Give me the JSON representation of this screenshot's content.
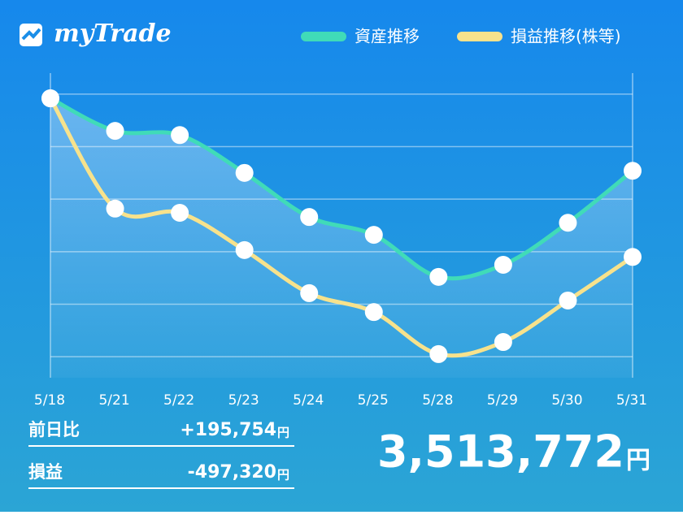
{
  "app_name": "myTrade",
  "chart_data": {
    "type": "line",
    "categories": [
      "5/18",
      "5/21",
      "5/22",
      "5/23",
      "5/24",
      "5/25",
      "5/28",
      "5/29",
      "5/30",
      "5/31"
    ],
    "series": [
      {
        "name": "資産推移",
        "color": "#40dbb8",
        "values": [
          4.92,
          4.3,
          4.22,
          3.5,
          2.66,
          2.32,
          1.52,
          1.75,
          2.55,
          3.54
        ]
      },
      {
        "name": "損益推移(株等)",
        "color": "#f7e28c",
        "values": [
          4.92,
          2.82,
          2.74,
          2.03,
          1.21,
          0.85,
          0.05,
          0.28,
          1.07,
          1.9
        ]
      }
    ],
    "ylim": [
      -0.4,
      5.4
    ],
    "yticks": [
      0,
      1,
      2,
      3,
      4,
      5
    ],
    "grid": true
  },
  "summary": {
    "rows": [
      {
        "label": "前日比",
        "value": "+195,754",
        "unit": "円"
      },
      {
        "label": "損益",
        "value": "-497,320",
        "unit": "円"
      }
    ],
    "total": {
      "value": "3,513,772",
      "unit": "円"
    }
  }
}
